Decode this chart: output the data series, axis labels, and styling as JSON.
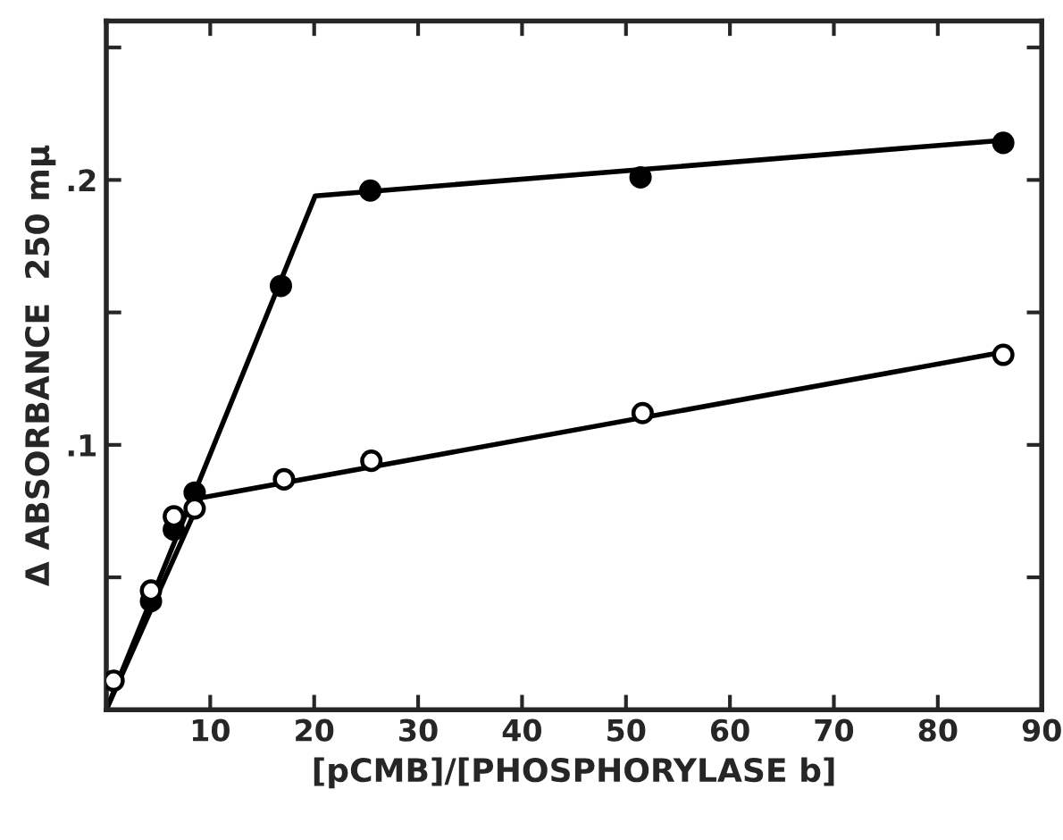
{
  "chart_data": {
    "type": "scatter",
    "xlabel": "[pCMB]/[PHOSPHORYLASE b]",
    "ylabel": "Δ ABSORBANCE  250 mμ",
    "xlim": [
      0,
      90
    ],
    "xticks": [
      10,
      20,
      30,
      40,
      50,
      60,
      70,
      80,
      90
    ],
    "ylim": [
      0,
      0.26
    ],
    "yticks": [
      {
        "value": 0.05,
        "label": null
      },
      {
        "value": 0.1,
        "label": ".1"
      },
      {
        "value": 0.15,
        "label": null
      },
      {
        "value": 0.2,
        "label": ".2"
      },
      {
        "value": 0.25,
        "label": null
      }
    ],
    "grid": false,
    "legend": false,
    "marker": "circle",
    "series": [
      {
        "type": "line",
        "color": "#000000",
        "marker": "none",
        "x": [
          0,
          20.1,
          86.3
        ],
        "values": [
          0,
          0.194,
          0.215
        ]
      },
      {
        "type": "line",
        "color": "#000000",
        "marker": "none",
        "x": [
          0,
          9.1,
          86.3
        ],
        "values": [
          0,
          0.08,
          0.135
        ]
      },
      {
        "color": "#000000",
        "x": [
          4.3,
          6.5,
          8.5,
          16.8,
          25.4,
          51.4,
          86.3
        ],
        "values": [
          0.041,
          0.068,
          0.082,
          0.16,
          0.196,
          0.201,
          0.214
        ]
      },
      {
        "color": "#ffffff",
        "x": [
          0.7,
          4.3,
          6.5,
          8.5,
          17.1,
          25.5,
          51.6,
          86.3
        ],
        "values": [
          0.011,
          0.045,
          0.073,
          0.076,
          0.087,
          0.094,
          0.112,
          0.134
        ]
      }
    ]
  }
}
